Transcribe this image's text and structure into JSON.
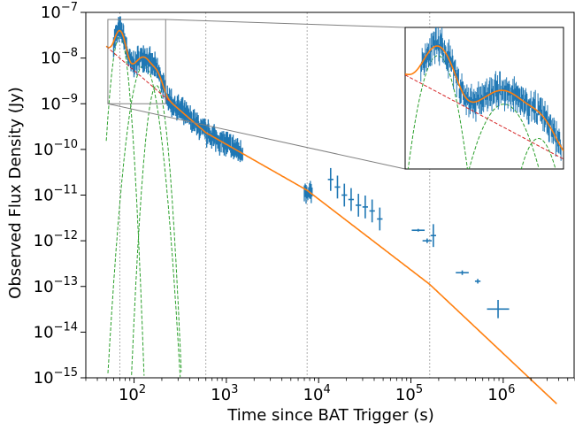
{
  "chart_data": {
    "type": "scatter",
    "title": "",
    "xlabel": "Time since BAT Trigger (s)",
    "ylabel": "Observed Flux Density (Jy)",
    "xscale": "log",
    "yscale": "log",
    "xlim": [
      30,
      6000000
    ],
    "ylim": [
      1e-15,
      1e-07
    ],
    "x_ticks": [
      {
        "base": "10",
        "exp": "2"
      },
      {
        "base": "10",
        "exp": "3"
      },
      {
        "base": "10",
        "exp": "4"
      },
      {
        "base": "10",
        "exp": "5"
      },
      {
        "base": "10",
        "exp": "6"
      }
    ],
    "x_tick_values": [
      100,
      1000,
      10000,
      100000,
      1000000
    ],
    "y_ticks": [
      {
        "base": "10",
        "exp": "−15"
      },
      {
        "base": "10",
        "exp": "−14"
      },
      {
        "base": "10",
        "exp": "−13"
      },
      {
        "base": "10",
        "exp": "−12"
      },
      {
        "base": "10",
        "exp": "−11"
      },
      {
        "base": "10",
        "exp": "−10"
      },
      {
        "base": "10",
        "exp": "−9"
      },
      {
        "base": "10",
        "exp": "−8"
      },
      {
        "base": "10",
        "exp": "−7"
      }
    ],
    "y_tick_values": [
      1e-15,
      1e-14,
      1e-13,
      1e-12,
      1e-11,
      1e-10,
      1e-09,
      1e-08,
      1e-07
    ],
    "vertical_lines_x": [
      70,
      600,
      7500,
      160000
    ],
    "colors": {
      "data": "#1f77b4",
      "model": "#ff7f0e",
      "powerlaw": "#d62728",
      "flares": "#2ca02c",
      "vline": "#999999",
      "zoom_box": "#808080"
    },
    "series": [
      {
        "kind": "data",
        "segments": [
          {
            "t_start": 60,
            "t_end": 1500,
            "samples": 260
          },
          {
            "t_start": 7000,
            "t_end": 8500,
            "samples": 10
          }
        ],
        "points": [
          {
            "x": 13500,
            "y": 2.2e-11,
            "yerr": 0.25,
            "xerr": 0.03
          },
          {
            "x": 16000,
            "y": 1.5e-11,
            "yerr": 0.25,
            "xerr": 0.03
          },
          {
            "x": 19000,
            "y": 1e-11,
            "yerr": 0.25,
            "xerr": 0.03
          },
          {
            "x": 22500,
            "y": 8e-12,
            "yerr": 0.25,
            "xerr": 0.03
          },
          {
            "x": 27000,
            "y": 6e-12,
            "yerr": 0.25,
            "xerr": 0.03
          },
          {
            "x": 32000,
            "y": 5.5e-12,
            "yerr": 0.25,
            "xerr": 0.03
          },
          {
            "x": 38000,
            "y": 4.5e-12,
            "yerr": 0.25,
            "xerr": 0.03
          },
          {
            "x": 46000,
            "y": 3e-12,
            "yerr": 0.25,
            "xerr": 0.03
          },
          {
            "x": 120000,
            "y": 1.7e-12,
            "yerr": 0.03,
            "xerr": 0.07
          },
          {
            "x": 150000,
            "y": 1e-12,
            "yerr": 0.05,
            "xerr": 0.05
          },
          {
            "x": 175000,
            "y": 1.3e-12,
            "yerr": 0.25,
            "xerr": 0.03
          },
          {
            "x": 360000,
            "y": 2e-13,
            "yerr": 0.05,
            "xerr": 0.07
          },
          {
            "x": 530000,
            "y": 1.3e-13,
            "yerr": 0.05,
            "xerr": 0.03
          },
          {
            "x": 880000,
            "y": 3.2e-14,
            "yerr": 0.2,
            "xerr": 0.12
          }
        ]
      },
      {
        "kind": "model",
        "style": "solid",
        "x_range": [
          50,
          3800000
        ]
      },
      {
        "kind": "powerlaw",
        "style": "dashed",
        "x_range": [
          50,
          300
        ]
      },
      {
        "kind": "flares",
        "style": "dashed",
        "flares": [
          {
            "t0": 70,
            "peak": 3e-08,
            "width": 0.045
          },
          {
            "t0": 128,
            "peak": 7e-09,
            "width": 0.07
          },
          {
            "t0": 175,
            "peak": 2.5e-09,
            "width": 0.05
          }
        ]
      }
    ],
    "model_params": {
      "segments": [
        {
          "from": 50,
          "to": 600,
          "f0": 1.8e-08,
          "t0": 50,
          "slope": -1.75
        },
        {
          "from": 600,
          "to": 7500,
          "slope": -1.15
        },
        {
          "from": 7500,
          "to": 160000,
          "slope": -1.55
        },
        {
          "from": 160000,
          "to": 3800000,
          "slope": -1.9
        }
      ]
    },
    "inset": {
      "source_box": {
        "x": [
          52,
          220
        ],
        "y": [
          1e-09,
          7e-08
        ]
      },
      "shows": "zoomed view of early flares"
    }
  }
}
